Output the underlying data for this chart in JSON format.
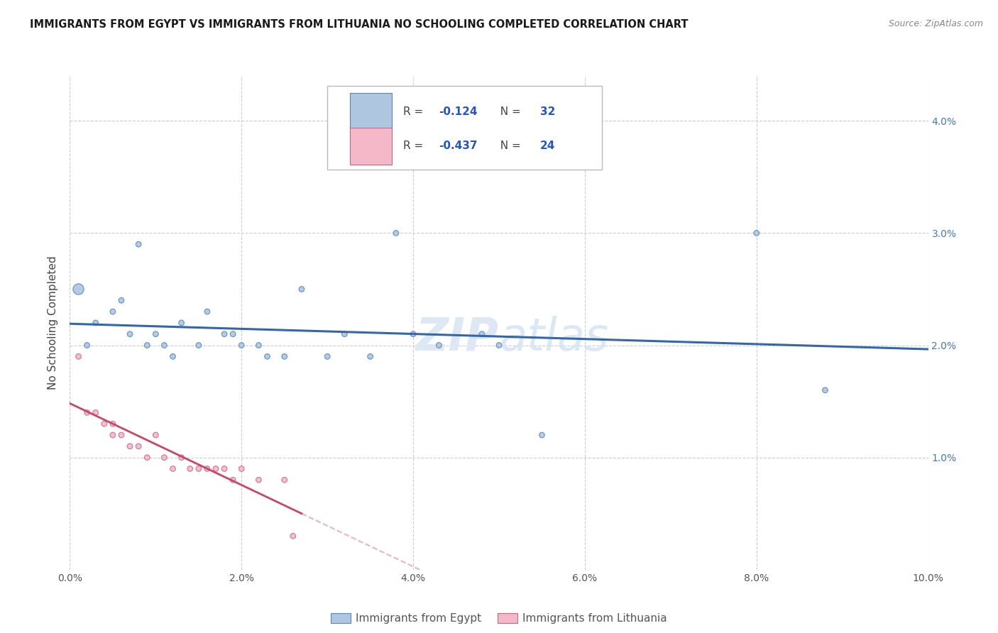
{
  "title": "IMMIGRANTS FROM EGYPT VS IMMIGRANTS FROM LITHUANIA NO SCHOOLING COMPLETED CORRELATION CHART",
  "source": "Source: ZipAtlas.com",
  "ylabel": "No Schooling Completed",
  "xlim": [
    0.0,
    0.1
  ],
  "ylim": [
    0.0,
    0.044
  ],
  "xticks": [
    0.0,
    0.02,
    0.04,
    0.06,
    0.08,
    0.1
  ],
  "yticks": [
    0.0,
    0.01,
    0.02,
    0.03,
    0.04
  ],
  "xticklabels": [
    "0.0%",
    "2.0%",
    "4.0%",
    "6.0%",
    "8.0%",
    "10.0%"
  ],
  "yticklabels_right": [
    "",
    "1.0%",
    "2.0%",
    "3.0%",
    "4.0%"
  ],
  "legend_egypt": "Immigrants from Egypt",
  "legend_lithuania": "Immigrants from Lithuania",
  "egypt_R": "-0.124",
  "egypt_N": "32",
  "lithuania_R": "-0.437",
  "lithuania_N": "24",
  "egypt_color": "#aec6e0",
  "egypt_edge_color": "#5588bb",
  "egypt_line_color": "#3366aa",
  "lithuania_color": "#f4b8c8",
  "lithuania_edge_color": "#cc6688",
  "lithuania_line_color": "#cc4466",
  "egypt_points_x": [
    0.001,
    0.002,
    0.003,
    0.005,
    0.006,
    0.007,
    0.008,
    0.009,
    0.01,
    0.011,
    0.012,
    0.013,
    0.015,
    0.016,
    0.018,
    0.019,
    0.02,
    0.022,
    0.023,
    0.025,
    0.027,
    0.03,
    0.032,
    0.035,
    0.038,
    0.04,
    0.043,
    0.048,
    0.05,
    0.055,
    0.08,
    0.088
  ],
  "egypt_points_y": [
    0.025,
    0.02,
    0.022,
    0.023,
    0.024,
    0.021,
    0.029,
    0.02,
    0.021,
    0.02,
    0.019,
    0.022,
    0.02,
    0.023,
    0.021,
    0.021,
    0.02,
    0.02,
    0.019,
    0.019,
    0.025,
    0.019,
    0.021,
    0.019,
    0.03,
    0.021,
    0.02,
    0.021,
    0.02,
    0.012,
    0.03,
    0.016
  ],
  "egypt_sizes": [
    120,
    30,
    30,
    30,
    30,
    30,
    30,
    30,
    30,
    30,
    30,
    30,
    30,
    30,
    30,
    30,
    30,
    30,
    30,
    30,
    30,
    30,
    30,
    30,
    30,
    30,
    30,
    30,
    30,
    30,
    30,
    30
  ],
  "lith_points_x": [
    0.001,
    0.002,
    0.003,
    0.004,
    0.005,
    0.005,
    0.006,
    0.007,
    0.008,
    0.009,
    0.01,
    0.011,
    0.012,
    0.013,
    0.014,
    0.015,
    0.016,
    0.017,
    0.018,
    0.019,
    0.02,
    0.022,
    0.025,
    0.026
  ],
  "lith_points_y": [
    0.019,
    0.014,
    0.014,
    0.013,
    0.012,
    0.013,
    0.012,
    0.011,
    0.011,
    0.01,
    0.012,
    0.01,
    0.009,
    0.01,
    0.009,
    0.009,
    0.009,
    0.009,
    0.009,
    0.008,
    0.009,
    0.008,
    0.008,
    0.003
  ],
  "lith_sizes": [
    30,
    30,
    30,
    30,
    30,
    30,
    30,
    30,
    30,
    30,
    30,
    30,
    30,
    30,
    30,
    30,
    30,
    30,
    30,
    30,
    30,
    30,
    30,
    30
  ],
  "watermark_zip": "ZIP",
  "watermark_atlas": "atlas",
  "background_color": "#ffffff",
  "grid_color": "#cccccc",
  "tick_color_right": "#4477bb",
  "text_color_normal": "#555555"
}
